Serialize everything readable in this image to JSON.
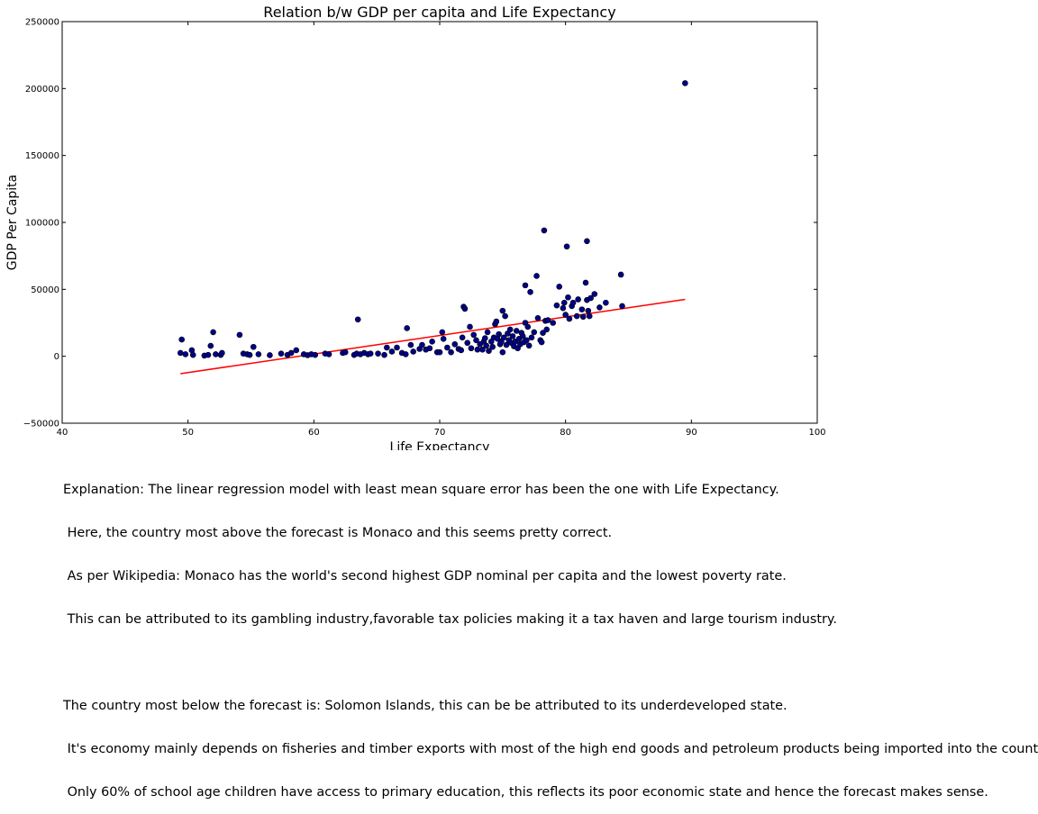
{
  "chart_data": {
    "type": "scatter",
    "title": "Relation b/w GDP per capita and Life Expectancy",
    "xlabel": "Life Expectancy",
    "ylabel": "GDP Per Capita",
    "xlim": [
      40,
      100
    ],
    "ylim": [
      -50000,
      250000
    ],
    "xticks": [
      40,
      50,
      60,
      70,
      80,
      90,
      100
    ],
    "yticks": [
      -50000,
      0,
      50000,
      100000,
      150000,
      200000,
      250000
    ],
    "xtick_labels": [
      "40",
      "50",
      "60",
      "70",
      "80",
      "90",
      "100"
    ],
    "ytick_labels": [
      "−50000",
      "0",
      "50000",
      "100000",
      "150000",
      "200000",
      "250000"
    ],
    "grid": false,
    "colors": {
      "points": "#00008b",
      "regression": "#ff0000"
    },
    "regression_line": {
      "x": [
        49.4,
        89.5
      ],
      "y": [
        -13000,
        42500
      ]
    },
    "points": [
      [
        49.4,
        2500
      ],
      [
        49.5,
        12500
      ],
      [
        49.8,
        1500
      ],
      [
        50.3,
        4500
      ],
      [
        50.4,
        1000
      ],
      [
        51.3,
        500
      ],
      [
        51.6,
        1000
      ],
      [
        51.8,
        7800
      ],
      [
        52.0,
        18000
      ],
      [
        52.2,
        1500
      ],
      [
        52.6,
        1000
      ],
      [
        52.7,
        2500
      ],
      [
        54.1,
        16000
      ],
      [
        54.4,
        2000
      ],
      [
        54.7,
        1500
      ],
      [
        54.9,
        1000
      ],
      [
        55.2,
        7000
      ],
      [
        55.6,
        1500
      ],
      [
        56.5,
        800
      ],
      [
        57.4,
        2000
      ],
      [
        57.9,
        1000
      ],
      [
        58.2,
        2500
      ],
      [
        58.6,
        4500
      ],
      [
        59.2,
        1500
      ],
      [
        59.5,
        800
      ],
      [
        59.8,
        1500
      ],
      [
        60.1,
        1000
      ],
      [
        60.9,
        2000
      ],
      [
        61.2,
        1500
      ],
      [
        62.3,
        2500
      ],
      [
        62.5,
        3000
      ],
      [
        63.2,
        1000
      ],
      [
        63.4,
        2000
      ],
      [
        63.5,
        27500
      ],
      [
        63.7,
        1500
      ],
      [
        64.0,
        2500
      ],
      [
        64.3,
        1500
      ],
      [
        64.5,
        2000
      ],
      [
        65.1,
        2000
      ],
      [
        65.6,
        1000
      ],
      [
        65.8,
        6500
      ],
      [
        66.2,
        3500
      ],
      [
        66.6,
        6500
      ],
      [
        67.0,
        2500
      ],
      [
        67.3,
        1500
      ],
      [
        67.4,
        21000
      ],
      [
        67.7,
        8500
      ],
      [
        67.9,
        3500
      ],
      [
        68.4,
        5500
      ],
      [
        68.6,
        8500
      ],
      [
        68.9,
        5000
      ],
      [
        69.2,
        6000
      ],
      [
        69.4,
        11000
      ],
      [
        69.8,
        3000
      ],
      [
        70.0,
        3000
      ],
      [
        70.2,
        18000
      ],
      [
        70.3,
        13000
      ],
      [
        70.6,
        6500
      ],
      [
        70.9,
        3000
      ],
      [
        71.2,
        9000
      ],
      [
        71.5,
        5500
      ],
      [
        71.7,
        4500
      ],
      [
        71.8,
        14000
      ],
      [
        71.9,
        37000
      ],
      [
        72.0,
        35500
      ],
      [
        72.2,
        10000
      ],
      [
        72.4,
        22000
      ],
      [
        72.5,
        6000
      ],
      [
        72.7,
        16000
      ],
      [
        72.9,
        12000
      ],
      [
        73.0,
        5000
      ],
      [
        73.2,
        9000
      ],
      [
        73.4,
        5000
      ],
      [
        73.5,
        11000
      ],
      [
        73.6,
        13500
      ],
      [
        73.7,
        8000
      ],
      [
        73.8,
        18000
      ],
      [
        73.9,
        4000
      ],
      [
        74.1,
        11000
      ],
      [
        74.2,
        7000
      ],
      [
        74.3,
        14000
      ],
      [
        74.4,
        24000
      ],
      [
        74.5,
        26000
      ],
      [
        74.6,
        13000
      ],
      [
        74.7,
        16500
      ],
      [
        74.8,
        9000
      ],
      [
        74.9,
        11000
      ],
      [
        75.0,
        34000
      ],
      [
        75.0,
        3000
      ],
      [
        75.1,
        14000
      ],
      [
        75.2,
        30000
      ],
      [
        75.3,
        8500
      ],
      [
        75.4,
        17000
      ],
      [
        75.5,
        12000
      ],
      [
        75.6,
        20000
      ],
      [
        75.7,
        10000
      ],
      [
        75.8,
        15000
      ],
      [
        75.9,
        7500
      ],
      [
        76.0,
        11000
      ],
      [
        76.1,
        19000
      ],
      [
        76.2,
        6000
      ],
      [
        76.3,
        13000
      ],
      [
        76.4,
        9000
      ],
      [
        76.5,
        17500
      ],
      [
        76.6,
        15000
      ],
      [
        76.7,
        10500
      ],
      [
        76.8,
        53000
      ],
      [
        76.8,
        25000
      ],
      [
        76.9,
        12000
      ],
      [
        77.0,
        22000
      ],
      [
        77.1,
        8000
      ],
      [
        77.2,
        48000
      ],
      [
        77.3,
        14000
      ],
      [
        77.5,
        18000
      ],
      [
        77.7,
        60000
      ],
      [
        77.8,
        28500
      ],
      [
        78.0,
        12000
      ],
      [
        78.1,
        10500
      ],
      [
        78.2,
        17500
      ],
      [
        78.3,
        94000
      ],
      [
        78.4,
        26500
      ],
      [
        78.5,
        20000
      ],
      [
        78.6,
        27000
      ],
      [
        79.0,
        25000
      ],
      [
        79.3,
        38000
      ],
      [
        79.5,
        52000
      ],
      [
        79.8,
        36000
      ],
      [
        79.9,
        40000
      ],
      [
        80.0,
        31000
      ],
      [
        80.1,
        82000
      ],
      [
        80.2,
        44000
      ],
      [
        80.3,
        28000
      ],
      [
        80.5,
        37500
      ],
      [
        80.6,
        40000
      ],
      [
        80.9,
        30000
      ],
      [
        81.0,
        42500
      ],
      [
        81.3,
        35000
      ],
      [
        81.4,
        29500
      ],
      [
        81.6,
        55000
      ],
      [
        81.7,
        86000
      ],
      [
        81.7,
        42000
      ],
      [
        81.8,
        34000
      ],
      [
        81.9,
        30000
      ],
      [
        82.0,
        43500
      ],
      [
        82.3,
        46500
      ],
      [
        82.7,
        36500
      ],
      [
        83.2,
        40000
      ],
      [
        84.4,
        61000
      ],
      [
        84.5,
        37500
      ],
      [
        89.5,
        204000
      ]
    ]
  },
  "caption": {
    "lines": [
      "Explanation: The linear regression model with least mean square error has been the one with Life Expectancy.",
      " Here, the country most above the forecast is Monaco and this seems pretty correct.",
      " As per Wikipedia: Monaco has the world's second highest GDP nominal per capita and the lowest poverty rate.",
      " This can be attributed to its gambling industry,favorable tax policies making it a tax haven and large tourism industry.",
      "",
      "The country most below the forecast is: Solomon Islands, this can be be attributed to its underdeveloped state.",
      " It's economy mainly depends on fisheries and timber exports with most of the high end goods and petroleum products being imported into the country.",
      " Only 60% of school age children have access to primary education, this reflects its poor economic state and hence the forecast makes sense."
    ]
  }
}
